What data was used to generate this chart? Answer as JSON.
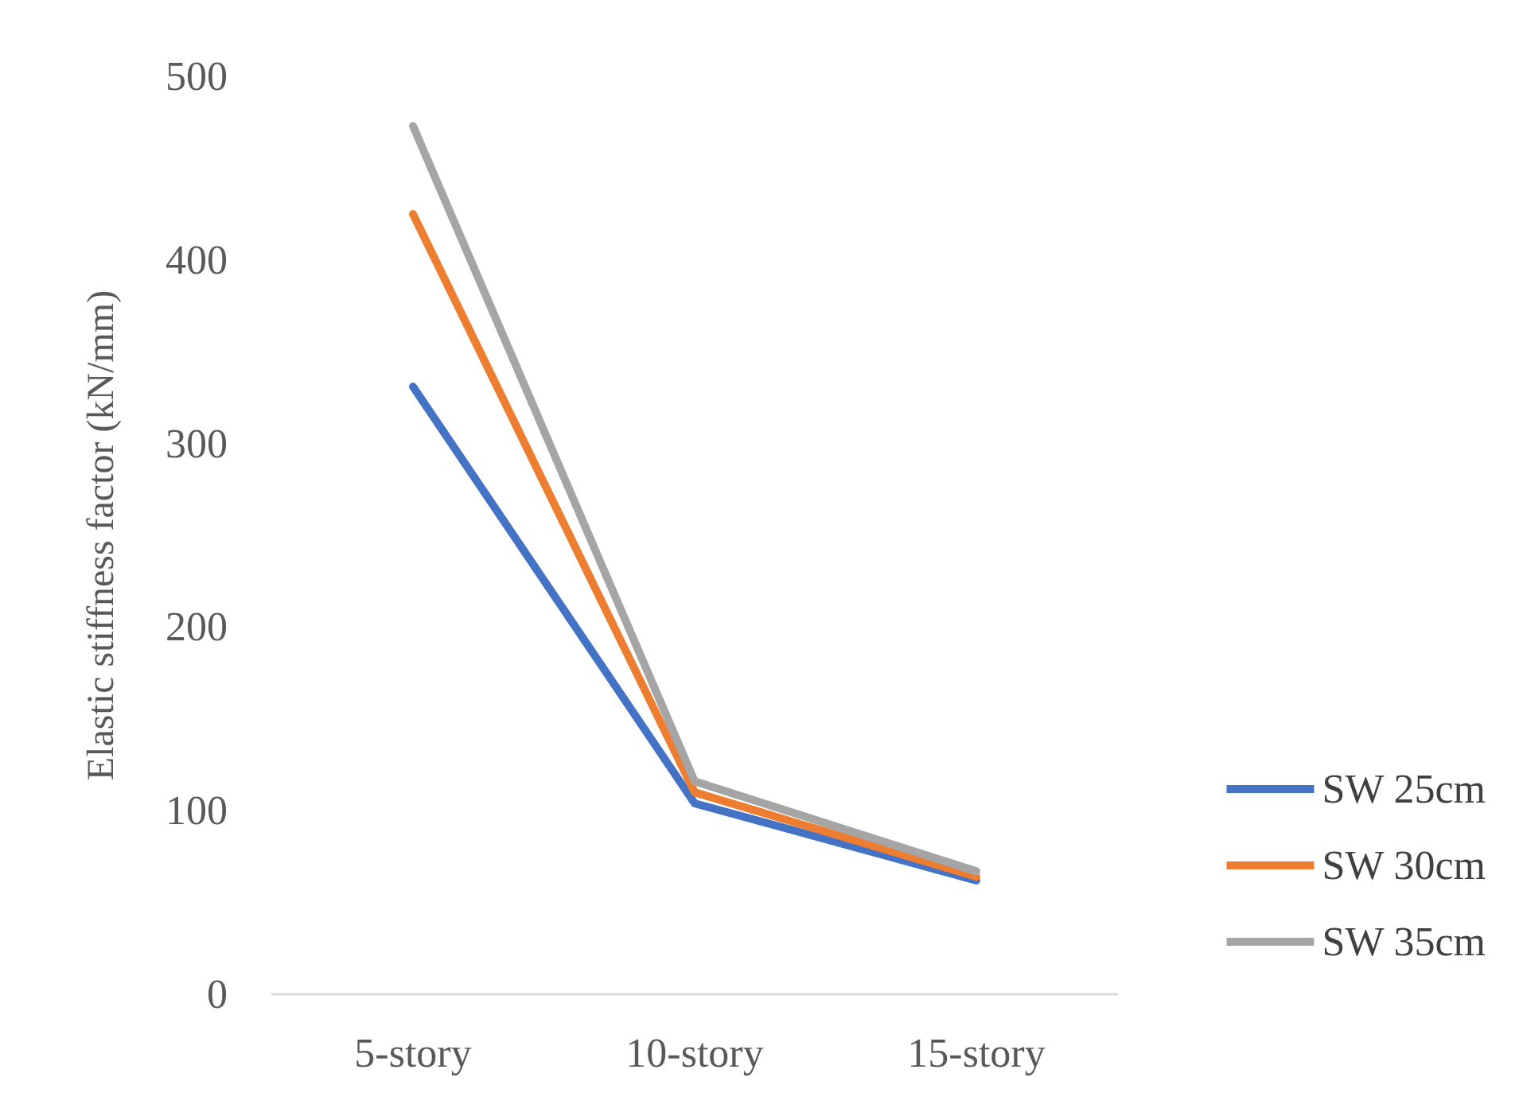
{
  "chart_data": {
    "type": "line",
    "ylabel": "Elastic stiffness factor (kN/mm)",
    "categories": [
      "5-story",
      "10-story",
      "15-story"
    ],
    "series": [
      {
        "name": "SW 25cm",
        "color": "#4472c4",
        "values": [
          331,
          104,
          62
        ]
      },
      {
        "name": "SW 30cm",
        "color": "#ed7d31",
        "values": [
          425,
          110,
          64
        ]
      },
      {
        "name": "SW 35cm",
        "color": "#a5a5a5",
        "values": [
          473,
          116,
          67
        ]
      }
    ],
    "ylim": [
      0,
      500
    ],
    "yticks": [
      0,
      100,
      200,
      300,
      400,
      500
    ],
    "grid": false,
    "legend": "right",
    "marker": "none",
    "line_style": "solid"
  }
}
